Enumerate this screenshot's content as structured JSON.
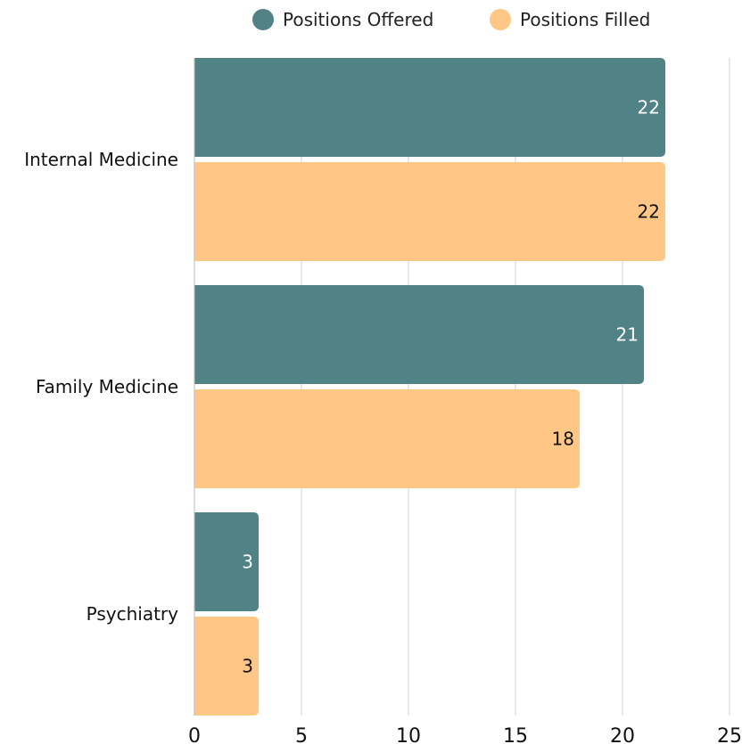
{
  "chart_data": {
    "type": "bar",
    "orientation": "horizontal",
    "categories": [
      "Internal Medicine",
      "Family Medicine",
      "Psychiatry"
    ],
    "series": [
      {
        "name": "Positions Offered",
        "values": [
          22,
          21,
          3
        ],
        "color": "#508286"
      },
      {
        "name": "Positions Filled",
        "values": [
          22,
          18,
          3
        ],
        "color": "#FFC685"
      }
    ],
    "xlim": [
      0,
      25
    ],
    "xticks": [
      0,
      5,
      10,
      15,
      20,
      25
    ],
    "grid": true,
    "legend_position": "top-right",
    "title": "",
    "xlabel": "",
    "ylabel": ""
  },
  "legend": {
    "items": [
      "Positions Offered",
      "Positions Filled"
    ]
  }
}
